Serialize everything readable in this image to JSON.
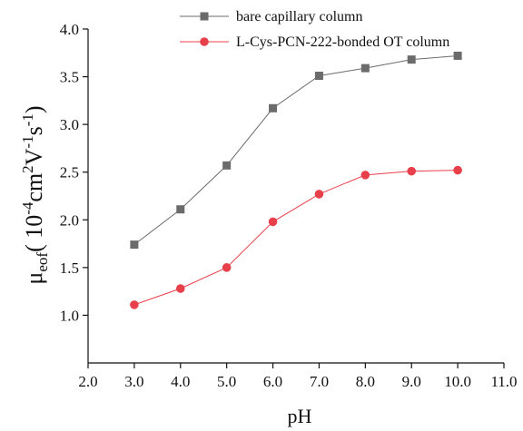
{
  "chart_data": {
    "type": "line",
    "xlabel": "pH",
    "ylabel": {
      "mu": "μ",
      "sub": "eof",
      "open": "( 10",
      "exp1": "-4",
      "cm": "cm",
      "exp2": "2",
      "v": "V",
      "exp3": "-1",
      "s": "s",
      "exp4": "-1",
      "close": ")"
    },
    "xlim": [
      2.0,
      11.0
    ],
    "ylim": [
      0.5,
      4.0
    ],
    "xticks": [
      "2.0",
      "3.0",
      "4.0",
      "5.0",
      "6.0",
      "7.0",
      "8.0",
      "9.0",
      "10.0",
      "11.0"
    ],
    "yticks": [
      "1.0",
      "1.5",
      "2.0",
      "2.5",
      "3.0",
      "3.5",
      "4.0"
    ],
    "grid": false,
    "legend_position": "top-right",
    "series": [
      {
        "name": "bare capillary column",
        "color": "#6b6b6b",
        "marker": "square",
        "x": [
          3,
          4,
          5,
          6,
          7,
          8,
          9,
          10
        ],
        "values": [
          1.74,
          2.11,
          2.57,
          3.17,
          3.51,
          3.59,
          3.68,
          3.72
        ]
      },
      {
        "name": "L-Cys-PCN-222-bonded OT column",
        "color": "#e8404a",
        "marker": "circle",
        "x": [
          3,
          4,
          5,
          6,
          7,
          8,
          9,
          10
        ],
        "values": [
          1.11,
          1.28,
          1.5,
          1.98,
          2.27,
          2.47,
          2.51,
          2.52
        ]
      }
    ]
  }
}
